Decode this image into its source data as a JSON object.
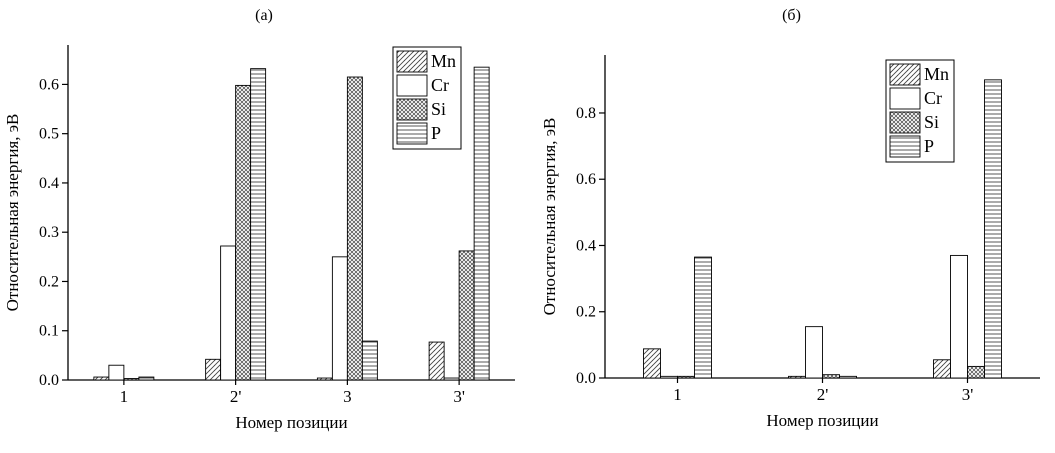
{
  "figure": {
    "background": "#ffffff",
    "axis_color": "#000000",
    "bar_outline_color": "#000000",
    "hatch_color": "#444444"
  },
  "chart_data": [
    {
      "type": "bar",
      "title": "(а)",
      "xlabel": "Номер позиции",
      "ylabel": "Относительная энергия, эВ",
      "categories": [
        "1",
        "2'",
        "3",
        "3'"
      ],
      "series": [
        {
          "name": "Mn",
          "pattern": "diagonal",
          "values": [
            0.006,
            0.042,
            0.004,
            0.077
          ]
        },
        {
          "name": "Cr",
          "pattern": "plain",
          "values": [
            0.03,
            0.272,
            0.25,
            0.004
          ]
        },
        {
          "name": "Si",
          "pattern": "crosshatch",
          "values": [
            0.003,
            0.598,
            0.615,
            0.262
          ]
        },
        {
          "name": "P",
          "pattern": "horizontal",
          "values": [
            0.006,
            0.632,
            0.079,
            0.635
          ]
        }
      ],
      "ylim": [
        0,
        0.68
      ],
      "yticks": [
        0.0,
        0.1,
        0.2,
        0.3,
        0.4,
        0.5,
        0.6
      ],
      "ytick_format_decimals": 1,
      "legend_position": "top-right",
      "legend_entries": [
        "Mn",
        "Cr",
        "Si",
        "P"
      ],
      "grid": false
    },
    {
      "type": "bar",
      "title": "(б)",
      "xlabel": "Номер позиции",
      "ylabel": "Относительная энергия, эВ",
      "categories": [
        "1",
        "2'",
        "3'"
      ],
      "series": [
        {
          "name": "Mn",
          "pattern": "diagonal",
          "values": [
            0.088,
            0.005,
            0.055
          ]
        },
        {
          "name": "Cr",
          "pattern": "plain",
          "values": [
            0.005,
            0.155,
            0.37
          ]
        },
        {
          "name": "Si",
          "pattern": "crosshatch",
          "values": [
            0.005,
            0.01,
            0.035
          ]
        },
        {
          "name": "P",
          "pattern": "horizontal",
          "values": [
            0.365,
            0.005,
            0.9
          ]
        }
      ],
      "ylim": [
        0,
        0.975
      ],
      "yticks": [
        0.0,
        0.2,
        0.4,
        0.6,
        0.8
      ],
      "ytick_format_decimals": 1,
      "legend_position": "top-right",
      "legend_entries": [
        "Mn",
        "Cr",
        "Si",
        "P"
      ],
      "grid": false
    }
  ]
}
